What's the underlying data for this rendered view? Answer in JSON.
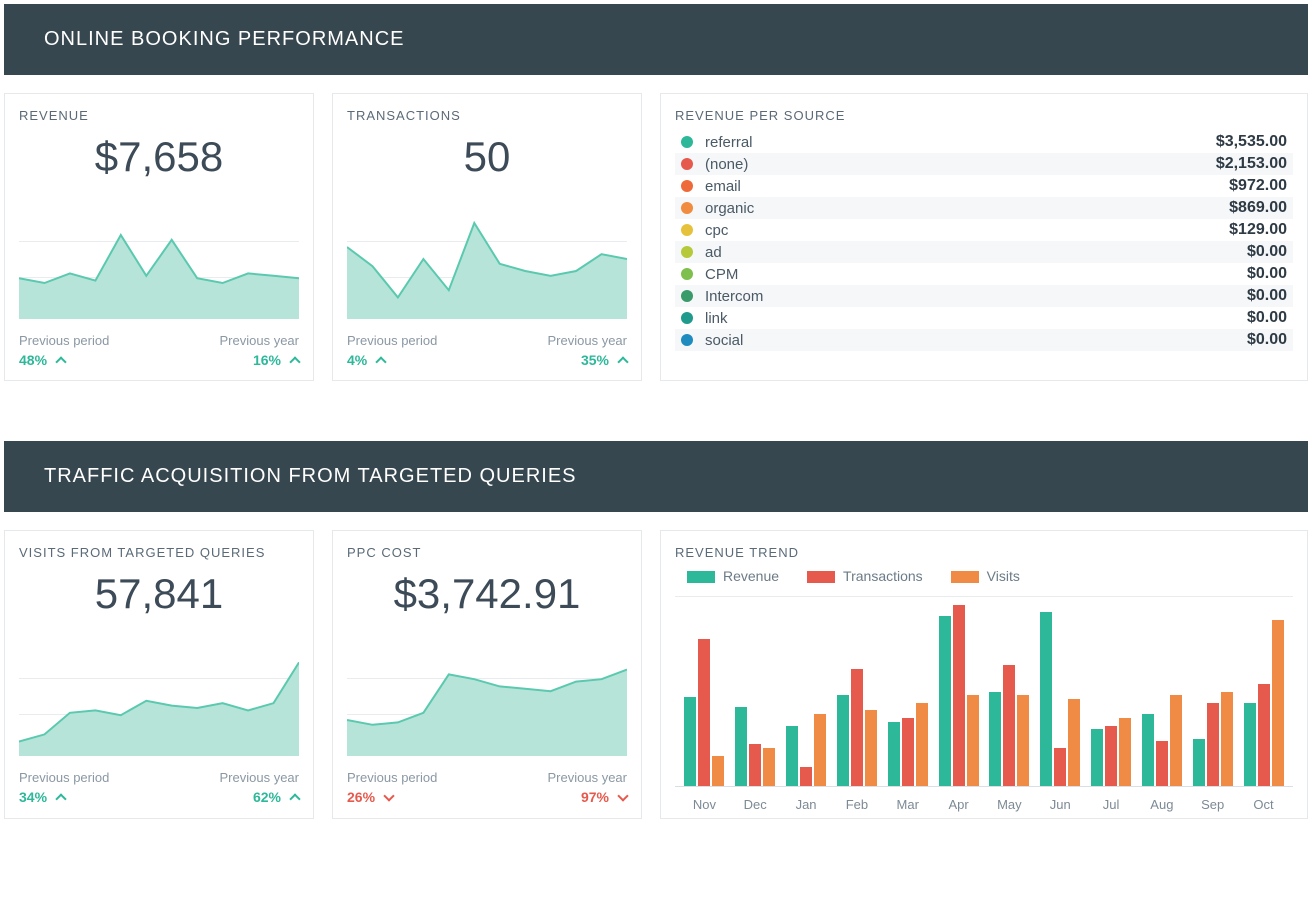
{
  "colors": {
    "header_bg": "#37474f",
    "teal": "#2db89a",
    "teal_fill": "#b7e4d8",
    "teal_stroke": "#5ac9af",
    "red": "#e65a4d",
    "orange": "#ef8b45",
    "grid": "#e8ecef",
    "text_muted": "#8a98a4"
  },
  "section1": {
    "title": "ONLINE BOOKING PERFORMANCE",
    "revenue_card": {
      "title": "REVENUE",
      "value": "$7,658",
      "spark": {
        "type": "area",
        "ylim": [
          0,
          100
        ],
        "grid_y": [
          5,
          35,
          65
        ],
        "points": [
          34,
          30,
          38,
          32,
          70,
          36,
          66,
          34,
          30,
          38,
          36,
          34
        ],
        "stroke": "#5ac9af",
        "fill": "#b7e4d8"
      },
      "prev_period": {
        "label": "Previous period",
        "pct": "48%",
        "dir": "up",
        "tone": "pos"
      },
      "prev_year": {
        "label": "Previous year",
        "pct": "16%",
        "dir": "up",
        "tone": "pos"
      }
    },
    "transactions_card": {
      "title": "TRANSACTIONS",
      "value": "50",
      "spark": {
        "type": "area",
        "ylim": [
          0,
          100
        ],
        "grid_y": [
          5,
          35,
          65
        ],
        "points": [
          60,
          44,
          18,
          50,
          24,
          80,
          46,
          40,
          36,
          40,
          54,
          50
        ],
        "stroke": "#5ac9af",
        "fill": "#b7e4d8"
      },
      "prev_period": {
        "label": "Previous period",
        "pct": "4%",
        "dir": "up",
        "tone": "pos"
      },
      "prev_year": {
        "label": "Previous year",
        "pct": "35%",
        "dir": "up",
        "tone": "pos"
      }
    },
    "per_source": {
      "title": "REVENUE PER SOURCE",
      "rows": [
        {
          "label": "referral",
          "amount": "$3,535.00",
          "dot": "#2db89a"
        },
        {
          "label": "(none)",
          "amount": "$2,153.00",
          "dot": "#e65a4d"
        },
        {
          "label": "email",
          "amount": "$972.00",
          "dot": "#ef6a3a"
        },
        {
          "label": "organic",
          "amount": "$869.00",
          "dot": "#f08b3f"
        },
        {
          "label": "cpc",
          "amount": "$129.00",
          "dot": "#e6c23c"
        },
        {
          "label": "ad",
          "amount": "$0.00",
          "dot": "#b6c93b"
        },
        {
          "label": "CPM",
          "amount": "$0.00",
          "dot": "#7fbf4d"
        },
        {
          "label": "Intercom",
          "amount": "$0.00",
          "dot": "#3a9a6a"
        },
        {
          "label": "link",
          "amount": "$0.00",
          "dot": "#1f9a8d"
        },
        {
          "label": "social",
          "amount": "$0.00",
          "dot": "#1f8cbf"
        }
      ]
    }
  },
  "section2": {
    "title": "TRAFFIC ACQUISITION FROM TARGETED QUERIES",
    "visits_card": {
      "title": "VISITS FROM TARGETED QUERIES",
      "value": "57,841",
      "spark": {
        "type": "area",
        "ylim": [
          0,
          100
        ],
        "grid_y": [
          5,
          35,
          65
        ],
        "points": [
          12,
          18,
          36,
          38,
          34,
          46,
          42,
          40,
          44,
          38,
          44,
          78
        ],
        "stroke": "#5ac9af",
        "fill": "#b7e4d8"
      },
      "prev_period": {
        "label": "Previous period",
        "pct": "34%",
        "dir": "up",
        "tone": "pos"
      },
      "prev_year": {
        "label": "Previous year",
        "pct": "62%",
        "dir": "up",
        "tone": "pos"
      }
    },
    "ppc_card": {
      "title": "PPC COST",
      "value": "$3,742.91",
      "spark": {
        "type": "area",
        "ylim": [
          0,
          100
        ],
        "grid_y": [
          5,
          35,
          65
        ],
        "points": [
          30,
          26,
          28,
          36,
          68,
          64,
          58,
          56,
          54,
          62,
          64,
          72
        ],
        "stroke": "#5ac9af",
        "fill": "#b7e4d8"
      },
      "prev_period": {
        "label": "Previous period",
        "pct": "26%",
        "dir": "down",
        "tone": "neg"
      },
      "prev_year": {
        "label": "Previous year",
        "pct": "97%",
        "dir": "down",
        "tone": "neg"
      }
    },
    "trend": {
      "title": "REVENUE TREND",
      "legend": [
        {
          "label": "Revenue",
          "color": "#2db89a"
        },
        {
          "label": "Transactions",
          "color": "#e65a4d"
        },
        {
          "label": "Visits",
          "color": "#ef8b45"
        }
      ],
      "ymax": 100,
      "months": [
        "Nov",
        "Dec",
        "Jan",
        "Feb",
        "Mar",
        "Apr",
        "May",
        "Jun",
        "Jul",
        "Aug",
        "Sep",
        "Oct"
      ],
      "series": {
        "revenue": [
          47,
          42,
          32,
          48,
          34,
          90,
          50,
          92,
          30,
          38,
          25,
          44
        ],
        "transactions": [
          78,
          22,
          10,
          62,
          36,
          96,
          64,
          20,
          32,
          24,
          44,
          54
        ],
        "visits": [
          16,
          20,
          38,
          40,
          44,
          48,
          48,
          46,
          36,
          48,
          50,
          88
        ]
      }
    }
  }
}
